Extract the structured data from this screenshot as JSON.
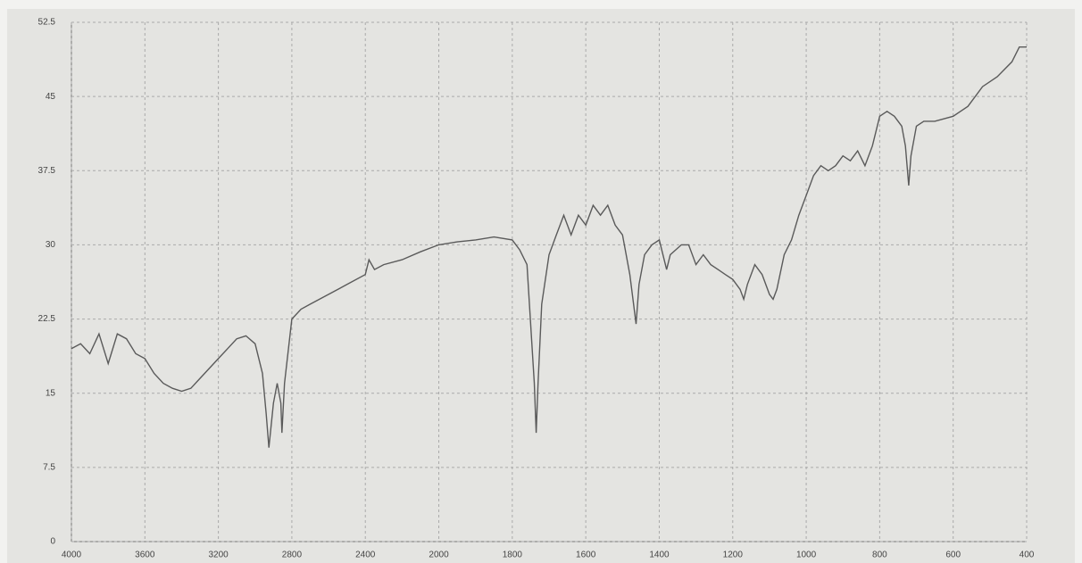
{
  "chart_data": {
    "type": "line",
    "color": "#5a5a5a",
    "grid": true,
    "xlim": [
      4000,
      400
    ],
    "xticks": [
      4000,
      3600,
      3200,
      2800,
      2400,
      2000,
      1800,
      1600,
      1400,
      1200,
      1000,
      800,
      600,
      400
    ],
    "ylim": [
      0,
      52.5
    ],
    "yticks": [
      0,
      7.5,
      15,
      22.5,
      30,
      37.5,
      45,
      52.5
    ],
    "x": [
      4000,
      3950,
      3900,
      3850,
      3800,
      3750,
      3700,
      3650,
      3600,
      3550,
      3500,
      3450,
      3400,
      3350,
      3300,
      3250,
      3200,
      3150,
      3100,
      3050,
      3000,
      2960,
      2940,
      2925,
      2900,
      2880,
      2860,
      2854,
      2840,
      2800,
      2750,
      2700,
      2600,
      2500,
      2400,
      2380,
      2350,
      2300,
      2200,
      2100,
      2000,
      1950,
      1900,
      1850,
      1800,
      1780,
      1760,
      1750,
      1740,
      1735,
      1730,
      1720,
      1700,
      1680,
      1660,
      1640,
      1620,
      1600,
      1580,
      1560,
      1540,
      1520,
      1500,
      1480,
      1470,
      1463,
      1455,
      1440,
      1420,
      1400,
      1380,
      1370,
      1340,
      1320,
      1300,
      1280,
      1260,
      1240,
      1220,
      1200,
      1180,
      1170,
      1160,
      1140,
      1120,
      1100,
      1090,
      1080,
      1060,
      1040,
      1020,
      1000,
      980,
      960,
      940,
      920,
      900,
      880,
      860,
      840,
      820,
      800,
      780,
      760,
      740,
      730,
      721,
      715,
      700,
      680,
      650,
      600,
      560,
      520,
      480,
      440,
      420,
      400
    ],
    "values": [
      19.5,
      20,
      19,
      21,
      18,
      21,
      20.5,
      19,
      18.5,
      17,
      16,
      15.5,
      15.2,
      15.5,
      16.5,
      17.5,
      18.5,
      19.5,
      20.5,
      20.8,
      20,
      17,
      13,
      9.5,
      14,
      16,
      14,
      11,
      16,
      22.5,
      23.5,
      24,
      25,
      26,
      27,
      28.5,
      27.5,
      28,
      28.5,
      29.3,
      30,
      30.3,
      30.5,
      30.8,
      30.5,
      29.5,
      28,
      22,
      16,
      11,
      16,
      24,
      29,
      31,
      33,
      31,
      33,
      32,
      34,
      33,
      34,
      32,
      31,
      27,
      24,
      22,
      26,
      29,
      30,
      30.5,
      27.5,
      29,
      30,
      30,
      28,
      29,
      28,
      27.5,
      27,
      26.5,
      25.5,
      24.5,
      26,
      28,
      27,
      25,
      24.5,
      25.5,
      29,
      30.5,
      33,
      35,
      37,
      38,
      37.5,
      38,
      39,
      38.5,
      39.5,
      38,
      40,
      43,
      43.5,
      43,
      42,
      40,
      36,
      39,
      42,
      42.5,
      42.5,
      43,
      44,
      46,
      47,
      48.5,
      50,
      50
    ]
  }
}
